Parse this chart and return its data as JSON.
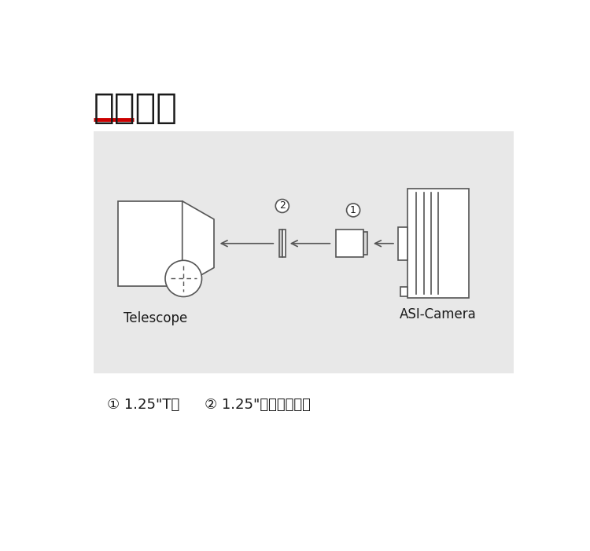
{
  "title": "连接方式",
  "title_underline_color": "#cc0000",
  "bg_color": "#ffffff",
  "diagram_bg_color": "#e8e8e8",
  "line_color": "#555555",
  "text_color": "#1a1a1a",
  "label_telescope": "Telescope",
  "label_camera": "ASI-Camera",
  "label_item1": "① 1.25\"T桶",
  "label_item2": "② 1.25\"滤镜（可选）",
  "circle1_label": "1",
  "circle2_label": "2",
  "font_size_title": 32,
  "font_size_label": 12,
  "font_size_items": 13,
  "font_size_circle": 9
}
